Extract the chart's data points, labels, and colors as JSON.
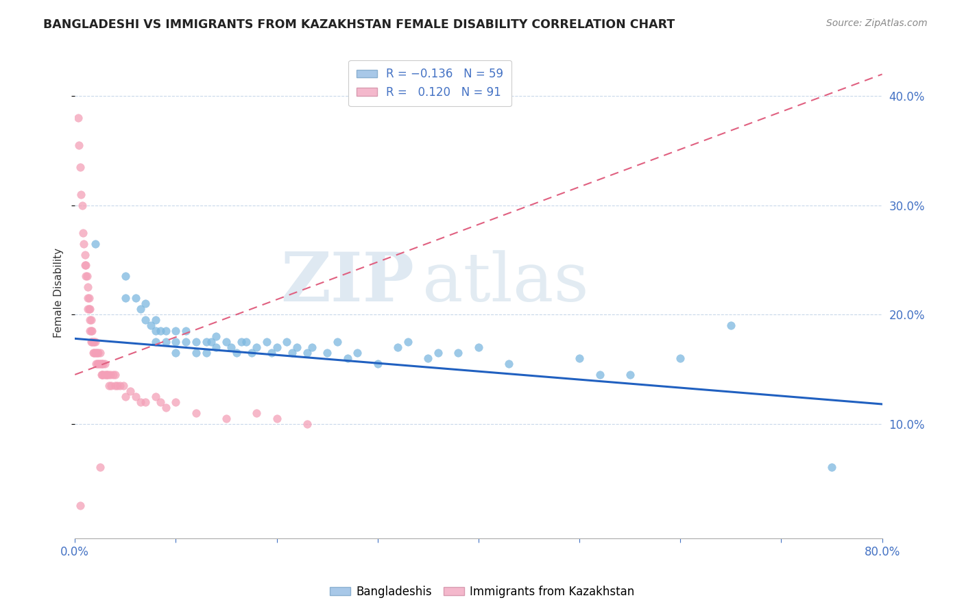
{
  "title": "BANGLADESHI VS IMMIGRANTS FROM KAZAKHSTAN FEMALE DISABILITY CORRELATION CHART",
  "source": "Source: ZipAtlas.com",
  "ylabel": "Female Disability",
  "yticks": [
    0.1,
    0.2,
    0.3,
    0.4
  ],
  "ytick_labels": [
    "10.0%",
    "20.0%",
    "30.0%",
    "40.0%"
  ],
  "xlim": [
    0.0,
    0.8
  ],
  "ylim": [
    -0.005,
    0.445
  ],
  "watermark_zip": "ZIP",
  "watermark_atlas": "atlas",
  "blue_color": "#7db8e0",
  "pink_color": "#f4a0b8",
  "trendline_blue_color": "#2060c0",
  "trendline_pink_color": "#e06080",
  "blue_points": [
    [
      0.02,
      0.265
    ],
    [
      0.05,
      0.215
    ],
    [
      0.05,
      0.235
    ],
    [
      0.06,
      0.215
    ],
    [
      0.065,
      0.205
    ],
    [
      0.07,
      0.195
    ],
    [
      0.07,
      0.21
    ],
    [
      0.075,
      0.19
    ],
    [
      0.08,
      0.195
    ],
    [
      0.08,
      0.185
    ],
    [
      0.08,
      0.175
    ],
    [
      0.085,
      0.185
    ],
    [
      0.09,
      0.185
    ],
    [
      0.09,
      0.175
    ],
    [
      0.1,
      0.185
    ],
    [
      0.1,
      0.175
    ],
    [
      0.1,
      0.165
    ],
    [
      0.11,
      0.175
    ],
    [
      0.11,
      0.185
    ],
    [
      0.12,
      0.175
    ],
    [
      0.12,
      0.165
    ],
    [
      0.13,
      0.175
    ],
    [
      0.13,
      0.165
    ],
    [
      0.135,
      0.175
    ],
    [
      0.14,
      0.17
    ],
    [
      0.14,
      0.18
    ],
    [
      0.15,
      0.175
    ],
    [
      0.155,
      0.17
    ],
    [
      0.16,
      0.165
    ],
    [
      0.165,
      0.175
    ],
    [
      0.17,
      0.175
    ],
    [
      0.175,
      0.165
    ],
    [
      0.18,
      0.17
    ],
    [
      0.19,
      0.175
    ],
    [
      0.195,
      0.165
    ],
    [
      0.2,
      0.17
    ],
    [
      0.21,
      0.175
    ],
    [
      0.215,
      0.165
    ],
    [
      0.22,
      0.17
    ],
    [
      0.23,
      0.165
    ],
    [
      0.235,
      0.17
    ],
    [
      0.25,
      0.165
    ],
    [
      0.26,
      0.175
    ],
    [
      0.27,
      0.16
    ],
    [
      0.28,
      0.165
    ],
    [
      0.3,
      0.155
    ],
    [
      0.32,
      0.17
    ],
    [
      0.33,
      0.175
    ],
    [
      0.35,
      0.16
    ],
    [
      0.36,
      0.165
    ],
    [
      0.38,
      0.165
    ],
    [
      0.4,
      0.17
    ],
    [
      0.43,
      0.155
    ],
    [
      0.5,
      0.16
    ],
    [
      0.52,
      0.145
    ],
    [
      0.55,
      0.145
    ],
    [
      0.6,
      0.16
    ],
    [
      0.65,
      0.19
    ],
    [
      0.75,
      0.06
    ]
  ],
  "pink_points": [
    [
      0.003,
      0.38
    ],
    [
      0.004,
      0.355
    ],
    [
      0.005,
      0.335
    ],
    [
      0.006,
      0.31
    ],
    [
      0.007,
      0.3
    ],
    [
      0.008,
      0.275
    ],
    [
      0.009,
      0.265
    ],
    [
      0.01,
      0.255
    ],
    [
      0.01,
      0.245
    ],
    [
      0.011,
      0.245
    ],
    [
      0.011,
      0.235
    ],
    [
      0.012,
      0.235
    ],
    [
      0.013,
      0.225
    ],
    [
      0.013,
      0.215
    ],
    [
      0.013,
      0.205
    ],
    [
      0.014,
      0.215
    ],
    [
      0.014,
      0.205
    ],
    [
      0.015,
      0.205
    ],
    [
      0.015,
      0.195
    ],
    [
      0.015,
      0.185
    ],
    [
      0.016,
      0.195
    ],
    [
      0.016,
      0.185
    ],
    [
      0.016,
      0.175
    ],
    [
      0.017,
      0.185
    ],
    [
      0.017,
      0.175
    ],
    [
      0.018,
      0.175
    ],
    [
      0.018,
      0.165
    ],
    [
      0.019,
      0.175
    ],
    [
      0.019,
      0.165
    ],
    [
      0.02,
      0.165
    ],
    [
      0.02,
      0.175
    ],
    [
      0.021,
      0.165
    ],
    [
      0.021,
      0.155
    ],
    [
      0.022,
      0.165
    ],
    [
      0.022,
      0.155
    ],
    [
      0.023,
      0.165
    ],
    [
      0.023,
      0.155
    ],
    [
      0.024,
      0.155
    ],
    [
      0.025,
      0.155
    ],
    [
      0.025,
      0.165
    ],
    [
      0.026,
      0.155
    ],
    [
      0.026,
      0.145
    ],
    [
      0.027,
      0.155
    ],
    [
      0.027,
      0.145
    ],
    [
      0.028,
      0.155
    ],
    [
      0.028,
      0.145
    ],
    [
      0.03,
      0.145
    ],
    [
      0.03,
      0.155
    ],
    [
      0.031,
      0.145
    ],
    [
      0.032,
      0.145
    ],
    [
      0.033,
      0.145
    ],
    [
      0.034,
      0.135
    ],
    [
      0.035,
      0.145
    ],
    [
      0.036,
      0.135
    ],
    [
      0.038,
      0.145
    ],
    [
      0.04,
      0.135
    ],
    [
      0.04,
      0.145
    ],
    [
      0.042,
      0.135
    ],
    [
      0.045,
      0.135
    ],
    [
      0.048,
      0.135
    ],
    [
      0.05,
      0.125
    ],
    [
      0.055,
      0.13
    ],
    [
      0.06,
      0.125
    ],
    [
      0.065,
      0.12
    ],
    [
      0.07,
      0.12
    ],
    [
      0.08,
      0.125
    ],
    [
      0.085,
      0.12
    ],
    [
      0.09,
      0.115
    ],
    [
      0.1,
      0.12
    ],
    [
      0.12,
      0.11
    ],
    [
      0.15,
      0.105
    ],
    [
      0.18,
      0.11
    ],
    [
      0.2,
      0.105
    ],
    [
      0.23,
      0.1
    ],
    [
      0.025,
      0.06
    ],
    [
      0.005,
      0.025
    ]
  ],
  "blue_trendline": {
    "x_start": 0.0,
    "x_end": 0.8,
    "y_start": 0.178,
    "y_end": 0.118
  },
  "pink_trendline": {
    "x_start": 0.0,
    "x_end": 0.8,
    "y_start": 0.145,
    "y_end": 0.42
  }
}
